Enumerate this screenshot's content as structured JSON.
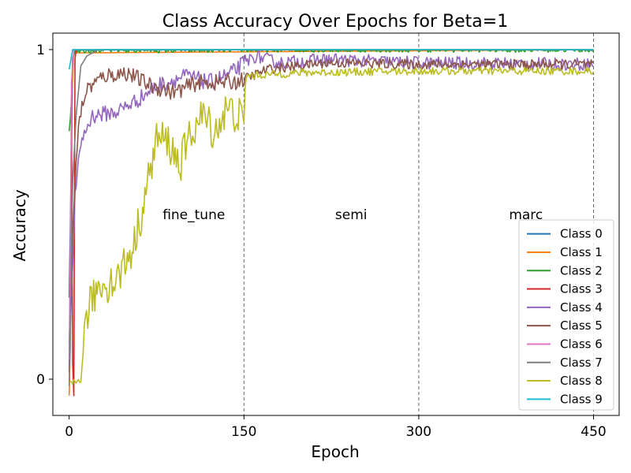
{
  "chart_data": {
    "type": "line",
    "title": "Class Accuracy Over Epochs for Beta=1",
    "xlabel": "Epoch",
    "ylabel": "Accuracy",
    "xlim": [
      -14,
      472
    ],
    "ylim": [
      -0.11,
      1.05
    ],
    "xticks": [
      0,
      150,
      300,
      450
    ],
    "xtick_labels": [
      "0",
      "150",
      "300",
      "450"
    ],
    "yticks": [
      0,
      1
    ],
    "ytick_labels": [
      "0",
      "1"
    ],
    "grid": false,
    "legend_position": "lower-right",
    "phase_boundaries": [
      150,
      300,
      450
    ],
    "phases": [
      {
        "label": "fine_tune",
        "x": 107,
        "y": 0.5
      },
      {
        "label": "semi",
        "x": 242,
        "y": 0.5
      },
      {
        "label": "marc",
        "x": 392,
        "y": 0.5
      }
    ],
    "series": [
      {
        "name": "Class 0",
        "color": "#1f77b4",
        "plateau": 1.0,
        "noise": 0.003,
        "keypoints": [
          [
            0,
            0.25
          ],
          [
            2,
            0.7
          ],
          [
            3,
            0.97
          ],
          [
            5,
            1.0
          ],
          [
            450,
            1.0
          ]
        ]
      },
      {
        "name": "Class 1",
        "color": "#ff7f0e",
        "plateau": 1.0,
        "noise": 0.0,
        "keypoints": [
          [
            0,
            -0.05
          ],
          [
            1,
            0.1
          ],
          [
            2,
            0.85
          ],
          [
            4,
            0.99
          ],
          [
            450,
            1.0
          ]
        ]
      },
      {
        "name": "Class 2",
        "color": "#2ca02c",
        "plateau": 0.995,
        "noise": 0.01,
        "keypoints": [
          [
            0,
            0.75
          ],
          [
            2,
            0.85
          ],
          [
            3,
            0.98
          ],
          [
            5,
            1.0
          ],
          [
            450,
            1.0
          ]
        ]
      },
      {
        "name": "Class 3",
        "color": "#d62728",
        "plateau": 1.0,
        "noise": 0.0,
        "keypoints": [
          [
            0,
            0.02
          ],
          [
            1,
            0.35
          ],
          [
            2,
            0.8
          ],
          [
            3,
            0.05
          ],
          [
            4,
            -0.05
          ],
          [
            5,
            0.97
          ],
          [
            6,
            1.0
          ],
          [
            450,
            1.0
          ]
        ]
      },
      {
        "name": "Class 4",
        "color": "#9467bd",
        "plateau": 0.975,
        "noise": 0.02,
        "keypoints": [
          [
            0,
            0.05
          ],
          [
            5,
            0.55
          ],
          [
            10,
            0.72
          ],
          [
            20,
            0.8
          ],
          [
            40,
            0.81
          ],
          [
            60,
            0.85
          ],
          [
            75,
            0.89
          ],
          [
            100,
            0.92
          ],
          [
            120,
            0.9
          ],
          [
            140,
            0.93
          ],
          [
            150,
            0.96
          ],
          [
            160,
            0.98
          ],
          [
            180,
            0.96
          ],
          [
            220,
            0.97
          ],
          [
            300,
            0.96
          ],
          [
            450,
            0.955
          ]
        ]
      },
      {
        "name": "Class 5",
        "color": "#8c564b",
        "plateau": 0.96,
        "noise": 0.015,
        "keypoints": [
          [
            0,
            0.1
          ],
          [
            3,
            0.45
          ],
          [
            8,
            0.78
          ],
          [
            15,
            0.88
          ],
          [
            30,
            0.92
          ],
          [
            50,
            0.93
          ],
          [
            70,
            0.89
          ],
          [
            90,
            0.87
          ],
          [
            110,
            0.9
          ],
          [
            140,
            0.9
          ],
          [
            150,
            0.91
          ],
          [
            170,
            0.94
          ],
          [
            220,
            0.96
          ],
          [
            300,
            0.955
          ],
          [
            450,
            0.955
          ]
        ]
      },
      {
        "name": "Class 6",
        "color": "#e377c2",
        "plateau": 1.0,
        "noise": 0.0,
        "keypoints": [
          [
            0,
            0.06
          ],
          [
            1,
            0.4
          ],
          [
            2,
            0.9
          ],
          [
            4,
            1.0
          ],
          [
            450,
            1.0
          ]
        ]
      },
      {
        "name": "Class 7",
        "color": "#7f7f7f",
        "plateau": 1.0,
        "noise": 0.0,
        "keypoints": [
          [
            0,
            -0.02
          ],
          [
            3,
            0.6
          ],
          [
            6,
            0.8
          ],
          [
            10,
            0.95
          ],
          [
            15,
            0.98
          ],
          [
            25,
            1.0
          ],
          [
            450,
            1.0
          ]
        ]
      },
      {
        "name": "Class 8",
        "color": "#bcbd22",
        "plateau": 0.935,
        "noise": 0.012,
        "keypoints": [
          [
            0,
            -0.02
          ],
          [
            10,
            0.0
          ],
          [
            15,
            0.2
          ],
          [
            25,
            0.28
          ],
          [
            40,
            0.3
          ],
          [
            55,
            0.4
          ],
          [
            65,
            0.55
          ],
          [
            75,
            0.73
          ],
          [
            85,
            0.72
          ],
          [
            95,
            0.65
          ],
          [
            105,
            0.75
          ],
          [
            115,
            0.8
          ],
          [
            125,
            0.75
          ],
          [
            135,
            0.82
          ],
          [
            145,
            0.8
          ],
          [
            150,
            0.78
          ],
          [
            152,
            0.92
          ],
          [
            200,
            0.93
          ],
          [
            300,
            0.935
          ],
          [
            450,
            0.935
          ]
        ]
      },
      {
        "name": "Class 9",
        "color": "#17becf",
        "plateau": 1.0,
        "noise": 0.0,
        "keypoints": [
          [
            0,
            0.94
          ],
          [
            3,
            1.0
          ],
          [
            450,
            1.0
          ]
        ]
      }
    ]
  }
}
